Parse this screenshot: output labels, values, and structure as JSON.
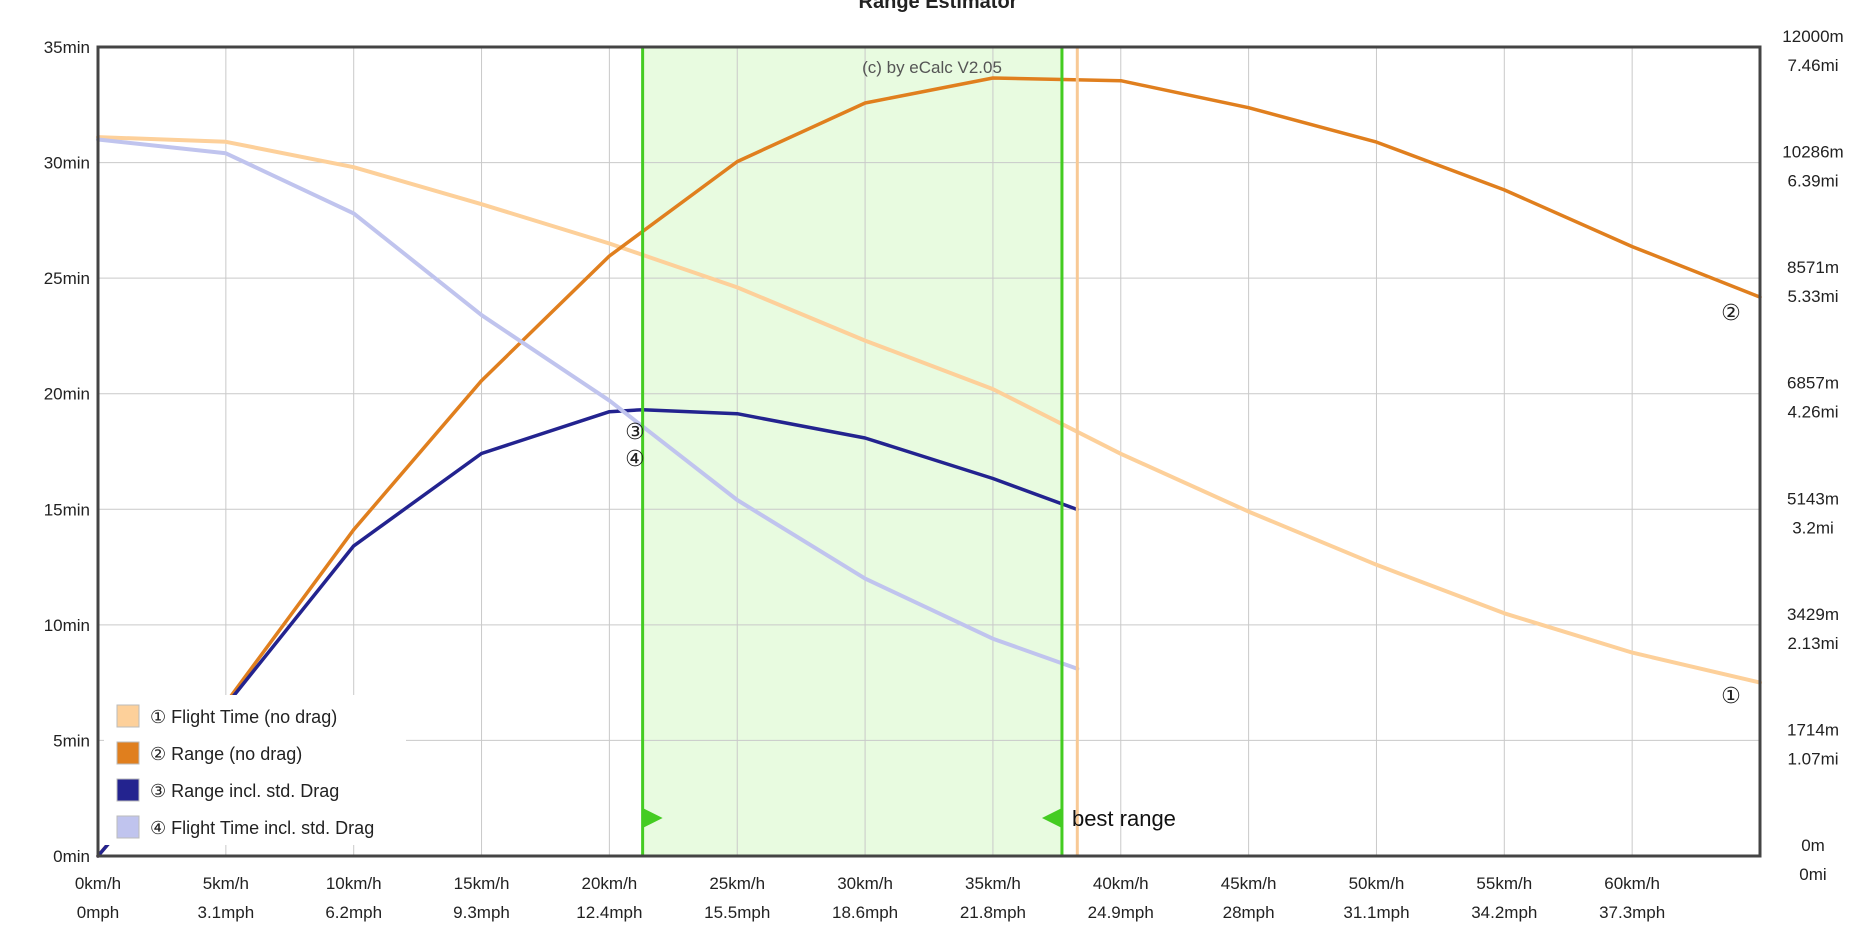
{
  "chart_data": {
    "type": "line",
    "title": "Range Estimator",
    "watermark": "(c) by eCalc  V2.05",
    "xlim": [
      0,
      65
    ],
    "x_tick_values": [
      0,
      5,
      10,
      15,
      20,
      25,
      30,
      35,
      40,
      45,
      50,
      55,
      60
    ],
    "x_ticks_kmh": [
      "0km/h",
      "5km/h",
      "10km/h",
      "15km/h",
      "20km/h",
      "25km/h",
      "30km/h",
      "35km/h",
      "40km/h",
      "45km/h",
      "50km/h",
      "55km/h",
      "60km/h"
    ],
    "x_ticks_mph": [
      "0mph",
      "3.1mph",
      "6.2mph",
      "9.3mph",
      "12.4mph",
      "15.5mph",
      "18.6mph",
      "21.8mph",
      "24.9mph",
      "28mph",
      "31.1mph",
      "34.2mph",
      "37.3mph"
    ],
    "y_left_lim": [
      0,
      35
    ],
    "y_left_tick_values": [
      0,
      5,
      10,
      15,
      20,
      25,
      30,
      35
    ],
    "y_left_ticks": [
      "0min",
      "5min",
      "10min",
      "15min",
      "20min",
      "25min",
      "30min",
      "35min"
    ],
    "y_right_lim": [
      0,
      12000
    ],
    "y_right_tick_values": [
      0,
      1714,
      3429,
      5143,
      6857,
      8571,
      10286,
      12000
    ],
    "y_right_ticks_m": [
      "0m",
      "1714m",
      "3429m",
      "5143m",
      "6857m",
      "8571m",
      "10286m",
      "12000m"
    ],
    "y_right_ticks_mi": [
      "0mi",
      "1.07mi",
      "2.13mi",
      "3.2mi",
      "4.26mi",
      "5.33mi",
      "6.39mi",
      "7.46mi"
    ],
    "grid": true,
    "legend_position": "bottom-left",
    "best_range_band": {
      "x_start": 21.3,
      "x_end": 37.7,
      "color": "#e8fbe0",
      "line_color": "#44cc22"
    },
    "best_range_line": {
      "x": 38.3,
      "color": "#f8c995"
    },
    "best_range_label": "best range",
    "series": [
      {
        "name": "① Flight Time (no drag)",
        "marker": "①",
        "axis": "left",
        "color": "#fdd09a",
        "width": 4,
        "x": [
          0,
          5,
          10,
          15,
          20,
          25,
          30,
          35,
          40,
          45,
          50,
          55,
          60,
          65
        ],
        "y": [
          31.1,
          30.9,
          29.8,
          28.2,
          26.5,
          24.6,
          22.3,
          20.2,
          17.4,
          14.9,
          12.6,
          10.5,
          8.8,
          7.5
        ]
      },
      {
        "name": "② Range (no drag)",
        "marker": "②",
        "axis": "right",
        "color": "#e07f1e",
        "width": 3.5,
        "x": [
          0,
          5,
          10,
          15,
          20,
          25,
          30,
          35,
          40,
          45,
          50,
          55,
          60,
          65
        ],
        "y": [
          0,
          2270,
          4840,
          7050,
          8900,
          10300,
          11170,
          11540,
          11500,
          11100,
          10590,
          9880,
          9040,
          8290
        ]
      },
      {
        "name": "③ Range incl. std. Drag",
        "marker": "③",
        "axis": "right",
        "color": "#23238f",
        "width": 3.5,
        "x": [
          0,
          5,
          10,
          15,
          20,
          21.3,
          25,
          30,
          35,
          38.3
        ],
        "y": [
          0,
          2230,
          4600,
          5970,
          6590,
          6620,
          6560,
          6200,
          5600,
          5140
        ]
      },
      {
        "name": "④ Flight Time incl. std. Drag",
        "marker": "④",
        "axis": "left",
        "color": "#c0c4ee",
        "width": 4,
        "x": [
          0,
          5,
          10,
          15,
          20,
          25,
          30,
          35,
          38.3
        ],
        "y": [
          31.0,
          30.4,
          27.8,
          23.4,
          19.7,
          15.4,
          12.0,
          9.4,
          8.1
        ]
      }
    ]
  }
}
